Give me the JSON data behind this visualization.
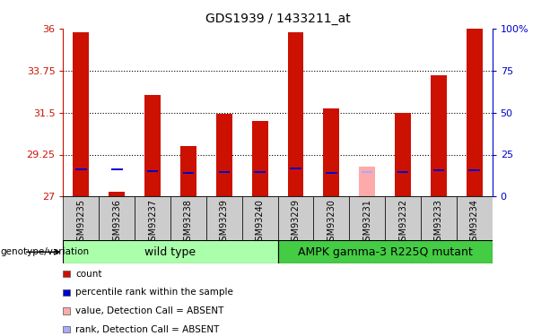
{
  "title": "GDS1939 / 1433211_at",
  "samples": [
    "GSM93235",
    "GSM93236",
    "GSM93237",
    "GSM93238",
    "GSM93239",
    "GSM93240",
    "GSM93229",
    "GSM93230",
    "GSM93231",
    "GSM93232",
    "GSM93233",
    "GSM93234"
  ],
  "red_values": [
    35.82,
    27.28,
    32.42,
    29.72,
    31.42,
    31.05,
    35.82,
    31.7,
    null,
    31.5,
    33.5,
    36.0
  ],
  "blue_values": [
    28.45,
    28.45,
    28.35,
    28.25,
    28.3,
    28.3,
    28.5,
    28.25,
    null,
    28.3,
    28.4,
    28.42
  ],
  "pink_values": [
    null,
    null,
    null,
    null,
    null,
    null,
    null,
    null,
    28.62,
    null,
    null,
    null
  ],
  "lightblue_values": [
    null,
    null,
    null,
    null,
    null,
    null,
    null,
    null,
    28.3,
    null,
    null,
    null
  ],
  "absent_blue": [
    null,
    28.45,
    null,
    null,
    null,
    null,
    null,
    null,
    null,
    null,
    null,
    null
  ],
  "absent_red": [
    null,
    27.28,
    null,
    null,
    null,
    null,
    null,
    null,
    null,
    null,
    null,
    null
  ],
  "ymin": 27,
  "ymax": 36,
  "yticks_left": [
    27,
    29.25,
    31.5,
    33.75,
    36
  ],
  "yticks_right_labels": [
    "0",
    "25",
    "50",
    "75",
    "100%"
  ],
  "bar_width": 0.45,
  "red_color": "#cc1100",
  "blue_color": "#0000cc",
  "pink_color": "#ffaaaa",
  "lightblue_color": "#aaaaff",
  "wild_type_label": "wild type",
  "mutant_label": "AMPK gamma-3 R225Q mutant",
  "genotype_label": "genotype/variation",
  "legend_items": [
    {
      "color": "#cc1100",
      "label": "count"
    },
    {
      "color": "#0000cc",
      "label": "percentile rank within the sample"
    },
    {
      "color": "#ffaaaa",
      "label": "value, Detection Call = ABSENT"
    },
    {
      "color": "#aaaaff",
      "label": "rank, Detection Call = ABSENT"
    }
  ],
  "background_xtick": "#cccccc",
  "background_wt": "#aaffaa",
  "background_mut": "#44cc44",
  "fig_width": 6.13,
  "fig_height": 3.75
}
